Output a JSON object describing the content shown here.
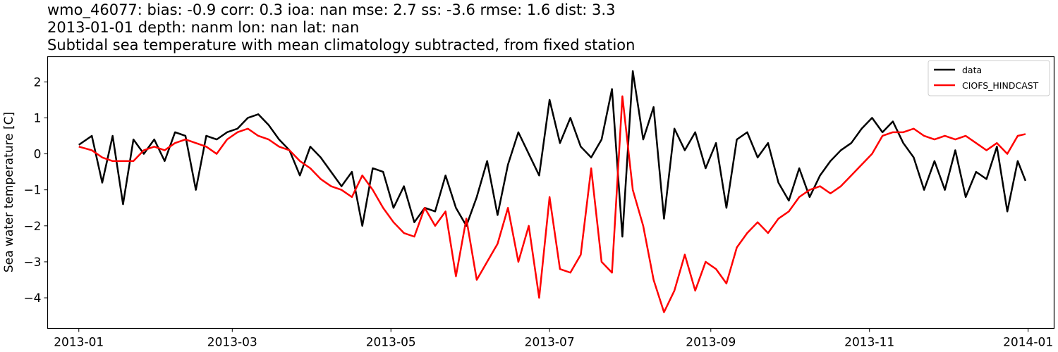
{
  "chart_data": {
    "type": "line",
    "title": [
      "wmo_46077: bias: -0.9  corr: 0.3  ioa: nan  mse: 2.7  ss: -3.6  rmse: 1.6  dist: 3.3",
      "2013-01-01 depth: nanm lon: nan lat: nan",
      "Subtidal sea temperature with mean climatology subtracted, from fixed station"
    ],
    "xlabel": "",
    "ylabel": "Sea water temperature [C]",
    "x_range": [
      "2012-12-20",
      "2014-01-11"
    ],
    "ylim": [
      -4.85,
      2.7
    ],
    "x_ticks": [
      "2013-01",
      "2013-03",
      "2013-05",
      "2013-07",
      "2013-09",
      "2013-11",
      "2014-01"
    ],
    "y_ticks": [
      -4,
      -3,
      -2,
      -1,
      0,
      1,
      2
    ],
    "y_tick_labels": [
      "−4",
      "−3",
      "−2",
      "−1",
      "0",
      "1",
      "2"
    ],
    "grid": false,
    "legend": "top-right",
    "series": [
      {
        "name": "data",
        "color": "#000000",
        "x": [
          "2013-01-01",
          "2013-01-06",
          "2013-01-10",
          "2013-01-14",
          "2013-01-18",
          "2013-01-22",
          "2013-01-26",
          "2013-01-30",
          "2013-02-03",
          "2013-02-07",
          "2013-02-11",
          "2013-02-15",
          "2013-02-19",
          "2013-02-23",
          "2013-02-27",
          "2013-03-03",
          "2013-03-07",
          "2013-03-11",
          "2013-03-15",
          "2013-03-19",
          "2013-03-23",
          "2013-03-27",
          "2013-03-31",
          "2013-04-04",
          "2013-04-08",
          "2013-04-12",
          "2013-04-16",
          "2013-04-20",
          "2013-04-24",
          "2013-04-28",
          "2013-05-02",
          "2013-05-06",
          "2013-05-10",
          "2013-05-14",
          "2013-05-18",
          "2013-05-22",
          "2013-05-26",
          "2013-05-30",
          "2013-06-03",
          "2013-06-07",
          "2013-06-11",
          "2013-06-15",
          "2013-06-19",
          "2013-06-23",
          "2013-06-27",
          "2013-07-01",
          "2013-07-05",
          "2013-07-09",
          "2013-07-13",
          "2013-07-17",
          "2013-07-21",
          "2013-07-25",
          "2013-07-29",
          "2013-08-02",
          "2013-08-06",
          "2013-08-10",
          "2013-08-14",
          "2013-08-18",
          "2013-08-22",
          "2013-08-26",
          "2013-08-30",
          "2013-09-03",
          "2013-09-07",
          "2013-09-11",
          "2013-09-15",
          "2013-09-19",
          "2013-09-23",
          "2013-09-27",
          "2013-10-01",
          "2013-10-05",
          "2013-10-09",
          "2013-10-13",
          "2013-10-17",
          "2013-10-21",
          "2013-10-25",
          "2013-10-29",
          "2013-11-02",
          "2013-11-06",
          "2013-11-10",
          "2013-11-14",
          "2013-11-18",
          "2013-11-22",
          "2013-11-26",
          "2013-11-30",
          "2013-12-04",
          "2013-12-08",
          "2013-12-12",
          "2013-12-16",
          "2013-12-20",
          "2013-12-24",
          "2013-12-28",
          "2013-12-31"
        ],
        "y": [
          0.25,
          0.5,
          -0.8,
          0.5,
          -1.4,
          0.4,
          0.0,
          0.4,
          -0.2,
          0.6,
          0.5,
          -1.0,
          0.5,
          0.4,
          0.6,
          0.7,
          1.0,
          1.1,
          0.8,
          0.4,
          0.1,
          -0.6,
          0.2,
          -0.1,
          -0.5,
          -0.9,
          -0.5,
          -2.0,
          -0.4,
          -0.5,
          -1.5,
          -0.9,
          -1.9,
          -1.5,
          -1.6,
          -0.6,
          -1.5,
          -2.0,
          -1.2,
          -0.2,
          -1.7,
          -0.3,
          0.6,
          0.0,
          -0.6,
          1.5,
          0.3,
          1.0,
          0.2,
          -0.1,
          0.4,
          1.8,
          -2.3,
          2.3,
          0.4,
          1.3,
          -1.8,
          0.7,
          0.1,
          0.6,
          -0.4,
          0.3,
          -1.5,
          0.4,
          0.6,
          -0.1,
          0.3,
          -0.8,
          -1.3,
          -0.4,
          -1.2,
          -0.6,
          -0.2,
          0.1,
          0.3,
          0.7,
          1.0,
          0.6,
          0.9,
          0.3,
          -0.1,
          -1.0,
          -0.2,
          -1.0,
          0.1,
          -1.2,
          -0.5,
          -0.7,
          0.2,
          -1.6,
          -0.2,
          -0.75
        ]
      },
      {
        "name": "CIOFS_HINDCAST",
        "color": "#ff0000",
        "x": [
          "2013-01-01",
          "2013-01-06",
          "2013-01-10",
          "2013-01-14",
          "2013-01-18",
          "2013-01-22",
          "2013-01-26",
          "2013-01-30",
          "2013-02-03",
          "2013-02-07",
          "2013-02-11",
          "2013-02-15",
          "2013-02-19",
          "2013-02-23",
          "2013-02-27",
          "2013-03-03",
          "2013-03-07",
          "2013-03-11",
          "2013-03-15",
          "2013-03-19",
          "2013-03-23",
          "2013-03-27",
          "2013-03-31",
          "2013-04-04",
          "2013-04-08",
          "2013-04-12",
          "2013-04-16",
          "2013-04-20",
          "2013-04-24",
          "2013-04-28",
          "2013-05-02",
          "2013-05-06",
          "2013-05-10",
          "2013-05-14",
          "2013-05-18",
          "2013-05-22",
          "2013-05-26",
          "2013-05-30",
          "2013-06-03",
          "2013-06-07",
          "2013-06-11",
          "2013-06-15",
          "2013-06-19",
          "2013-06-23",
          "2013-06-27",
          "2013-07-01",
          "2013-07-05",
          "2013-07-09",
          "2013-07-13",
          "2013-07-17",
          "2013-07-21",
          "2013-07-25",
          "2013-07-29",
          "2013-08-02",
          "2013-08-06",
          "2013-08-10",
          "2013-08-14",
          "2013-08-18",
          "2013-08-22",
          "2013-08-26",
          "2013-08-30",
          "2013-09-03",
          "2013-09-07",
          "2013-09-11",
          "2013-09-15",
          "2013-09-19",
          "2013-09-23",
          "2013-09-27",
          "2013-10-01",
          "2013-10-05",
          "2013-10-09",
          "2013-10-13",
          "2013-10-17",
          "2013-10-21",
          "2013-10-25",
          "2013-10-29",
          "2013-11-02",
          "2013-11-06",
          "2013-11-10",
          "2013-11-14",
          "2013-11-18",
          "2013-11-22",
          "2013-11-26",
          "2013-11-30",
          "2013-12-04",
          "2013-12-08",
          "2013-12-12",
          "2013-12-16",
          "2013-12-20",
          "2013-12-24",
          "2013-12-28",
          "2013-12-31"
        ],
        "y": [
          0.2,
          0.1,
          -0.1,
          -0.2,
          -0.2,
          -0.2,
          0.1,
          0.2,
          0.1,
          0.3,
          0.4,
          0.3,
          0.2,
          0.0,
          0.4,
          0.6,
          0.7,
          0.5,
          0.4,
          0.2,
          0.1,
          -0.2,
          -0.4,
          -0.7,
          -0.9,
          -1.0,
          -1.2,
          -0.6,
          -1.0,
          -1.5,
          -1.9,
          -2.2,
          -2.3,
          -1.5,
          -2.0,
          -1.6,
          -3.4,
          -1.8,
          -3.5,
          -3.0,
          -2.5,
          -1.5,
          -3.0,
          -2.0,
          -4.0,
          -1.2,
          -3.2,
          -3.3,
          -2.8,
          -0.4,
          -3.0,
          -3.3,
          1.6,
          -1.0,
          -2.0,
          -3.5,
          -4.4,
          -3.8,
          -2.8,
          -3.8,
          -3.0,
          -3.2,
          -3.6,
          -2.6,
          -2.2,
          -1.9,
          -2.2,
          -1.8,
          -1.6,
          -1.2,
          -1.0,
          -0.9,
          -1.1,
          -0.9,
          -0.6,
          -0.3,
          0.0,
          0.5,
          0.6,
          0.6,
          0.7,
          0.5,
          0.4,
          0.5,
          0.4,
          0.5,
          0.3,
          0.1,
          0.3,
          0.0,
          0.5,
          0.55
        ]
      }
    ]
  }
}
